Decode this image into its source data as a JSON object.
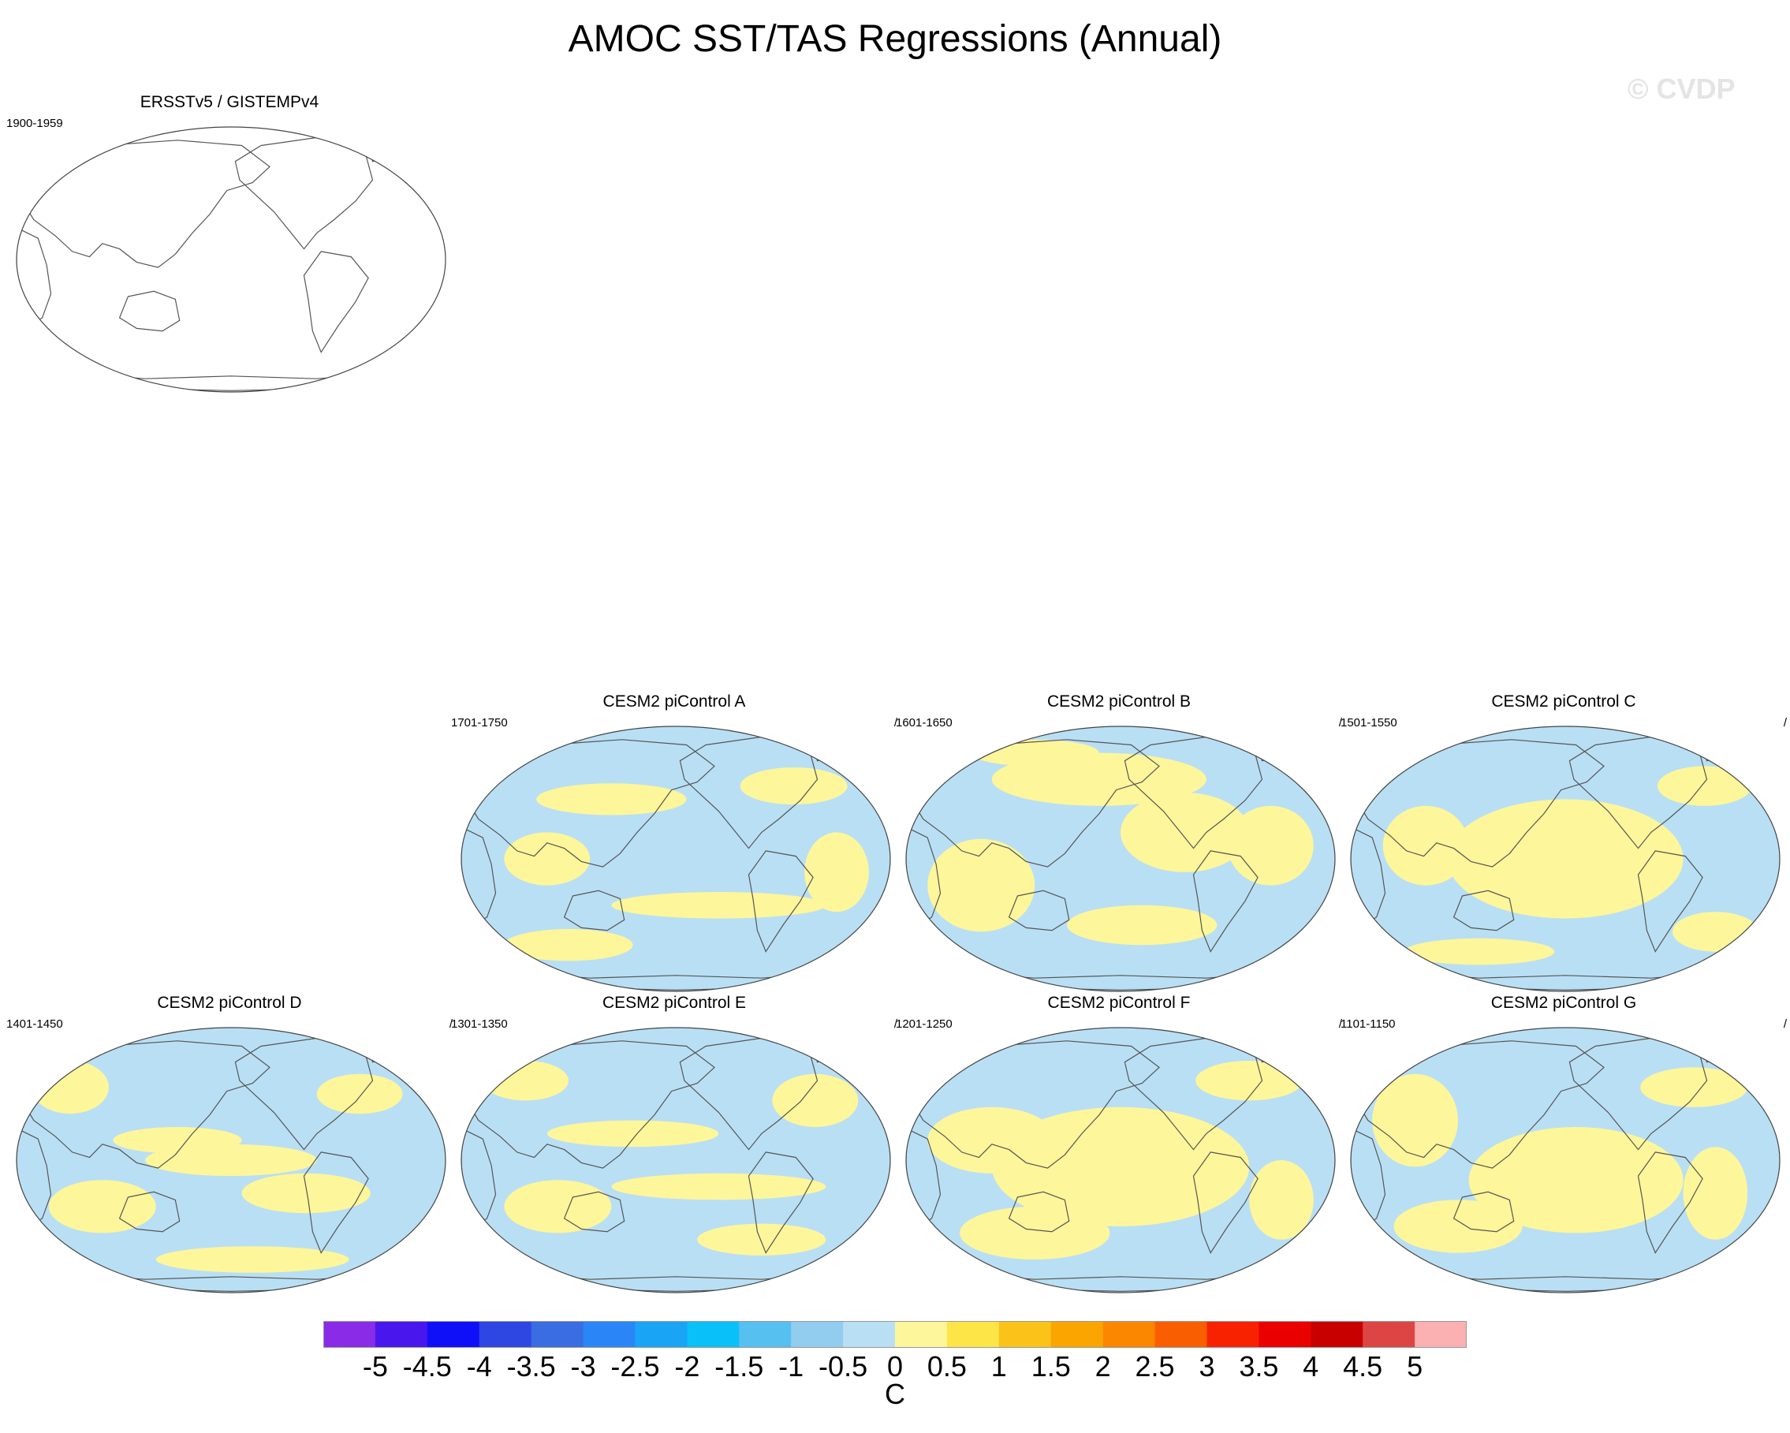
{
  "title": "AMOC SST/TAS Regressions (Annual)",
  "watermark": "© CVDP",
  "colors": {
    "land_outline": "#555555",
    "ocean_pos": "#fef69a",
    "ocean_neg": "#b9dff4",
    "ocean_pos_strong": "#fde447"
  },
  "panels": [
    {
      "id": "obs",
      "title": "ERSSTv5 / GISTEMPv4",
      "period": "1900-1959",
      "slash": "",
      "filled": false
    },
    {
      "id": "A",
      "title": "CESM2 piControl A",
      "period": "1701-1750",
      "slash": "/",
      "filled": true
    },
    {
      "id": "B",
      "title": "CESM2 piControl B",
      "period": "1601-1650",
      "slash": "/",
      "filled": true
    },
    {
      "id": "C",
      "title": "CESM2 piControl C",
      "period": "1501-1550",
      "slash": "/",
      "filled": true
    },
    {
      "id": "D",
      "title": "CESM2 piControl D",
      "period": "1401-1450",
      "slash": "/",
      "filled": true
    },
    {
      "id": "E",
      "title": "CESM2 piControl E",
      "period": "1301-1350",
      "slash": "/",
      "filled": true
    },
    {
      "id": "F",
      "title": "CESM2 piControl F",
      "period": "1201-1250",
      "slash": "/",
      "filled": true
    },
    {
      "id": "G",
      "title": "CESM2 piControl G",
      "period": "1101-1150",
      "slash": "/",
      "filled": true
    }
  ],
  "colorbar": {
    "unit": "C",
    "labels": [
      "-5",
      "-4.5",
      "-4",
      "-3.5",
      "-3",
      "-2.5",
      "-2",
      "-1.5",
      "-1",
      "-0.5",
      "0",
      "0.5",
      "1",
      "1.5",
      "2",
      "2.5",
      "3",
      "3.5",
      "4",
      "4.5",
      "5"
    ],
    "colors": [
      "#8a2be8",
      "#4a16ee",
      "#1010f8",
      "#2e46e2",
      "#3a6ce2",
      "#2a86f6",
      "#1aa4f6",
      "#0ac0f8",
      "#56c0f0",
      "#92ccee",
      "#b9dff4",
      "#fef69a",
      "#fde447",
      "#fbc31a",
      "#fba500",
      "#fb8600",
      "#f95e00",
      "#f92200",
      "#eb0000",
      "#c80000",
      "#dd4545",
      "#fbb1b1"
    ]
  }
}
